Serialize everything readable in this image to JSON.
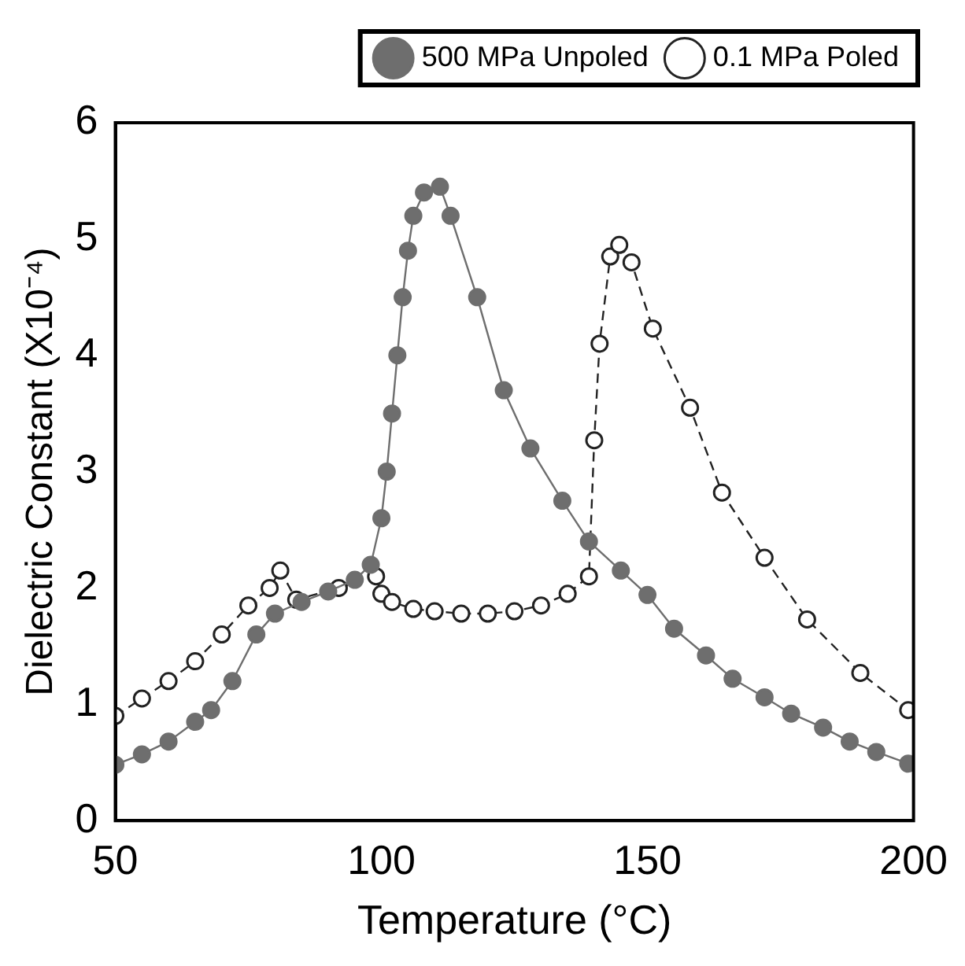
{
  "chart_data": {
    "type": "line",
    "xlabel": "Temperature (°C)",
    "ylabel": "Dielectric Constant (X10⁻⁴)",
    "xlim": [
      50,
      200
    ],
    "xticks": [
      50,
      100,
      150,
      200
    ],
    "ylim": [
      0,
      6
    ],
    "yticks": [
      0,
      1,
      2,
      3,
      4,
      5,
      6
    ],
    "legend": "top",
    "marker": "circle",
    "grid": false,
    "series": [
      {
        "name": "500 MPa Unpoled",
        "color": "#6e6e6e",
        "line_style": "solid",
        "x": [
          50,
          55,
          60,
          65,
          68,
          72,
          76.5,
          80,
          85,
          90,
          95,
          98,
          100,
          101,
          102,
          103,
          104,
          105,
          106,
          108,
          111,
          113,
          118,
          123,
          128,
          134,
          139,
          145,
          150,
          155,
          161,
          166,
          172,
          177,
          183,
          188,
          193,
          199
        ],
        "values": [
          0.48,
          0.57,
          0.68,
          0.85,
          0.95,
          1.2,
          1.6,
          1.78,
          1.88,
          1.97,
          2.07,
          2.2,
          2.6,
          3.0,
          3.5,
          4.0,
          4.5,
          4.9,
          5.2,
          5.4,
          5.45,
          5.2,
          4.5,
          3.7,
          3.2,
          2.75,
          2.4,
          2.15,
          1.94,
          1.65,
          1.42,
          1.22,
          1.06,
          0.92,
          0.8,
          0.68,
          0.59,
          0.49
        ]
      },
      {
        "name": "0.1 MPa Poled",
        "color": "#222222",
        "line_style": "dashed",
        "x": [
          50,
          55,
          60,
          65,
          70,
          75,
          79,
          81,
          84,
          92,
          99,
          100,
          102,
          106,
          110,
          115,
          120,
          125,
          130,
          135,
          139,
          140,
          141,
          143,
          144.7,
          147,
          151,
          158,
          164,
          172,
          180,
          190,
          199
        ],
        "values": [
          0.9,
          1.05,
          1.2,
          1.37,
          1.6,
          1.85,
          2.0,
          2.15,
          1.9,
          2.0,
          2.1,
          1.95,
          1.88,
          1.82,
          1.8,
          1.78,
          1.78,
          1.8,
          1.85,
          1.95,
          2.1,
          3.27,
          4.1,
          4.85,
          4.95,
          4.8,
          4.23,
          3.55,
          2.82,
          2.26,
          1.73,
          1.27,
          0.95
        ]
      }
    ]
  }
}
